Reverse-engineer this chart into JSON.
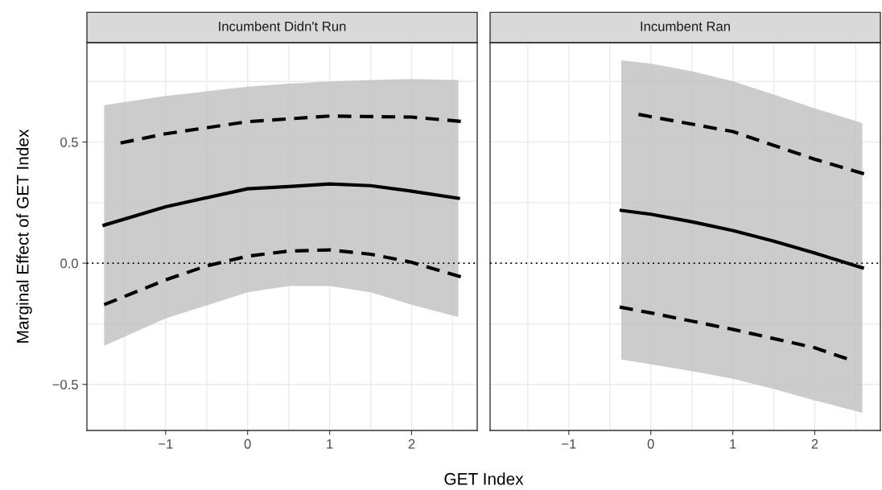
{
  "chart_data": [
    {
      "type": "line",
      "title": "Incumbent Didn't Run",
      "xlabel": "GET Index",
      "ylabel": "Marginal Effect of GET Index",
      "xlim": [
        -1.96,
        2.8
      ],
      "ylim": [
        -0.69,
        0.91
      ],
      "xticks": [
        {
          "value": -1.5,
          "label": null
        },
        {
          "value": -1,
          "label": "−1"
        },
        {
          "value": -0.5,
          "label": null
        },
        0,
        {
          "value": 0.5,
          "label": null
        },
        1,
        {
          "value": 1.5,
          "label": null
        },
        2,
        {
          "value": 2.5,
          "label": null
        }
      ],
      "yticks": [
        {
          "value": -0.5,
          "label": "−0.5"
        },
        {
          "value": -0.25,
          "label": null
        },
        {
          "value": 0,
          "label": "0.0"
        },
        {
          "value": 0.25,
          "label": null
        },
        0.5,
        {
          "value": 0.75,
          "label": null
        }
      ],
      "grid": true,
      "ref_lines": [
        {
          "axis": "y",
          "value": 0,
          "line_style": "dotted",
          "color": "#000000"
        }
      ],
      "series": [
        {
          "color": "#000000",
          "line_style": "solid",
          "x": [
            -1.75,
            -1,
            0,
            0.5,
            1,
            1.5,
            2,
            2.57
          ],
          "values": [
            0.157,
            0.233,
            0.307,
            0.316,
            0.327,
            0.32,
            0.297,
            0.268
          ],
          "lower": [
            -0.341,
            -0.228,
            -0.12,
            -0.094,
            -0.094,
            -0.12,
            -0.171,
            -0.222
          ],
          "upper": [
            0.652,
            0.69,
            0.728,
            0.741,
            0.75,
            0.756,
            0.76,
            0.756
          ]
        },
        {
          "color": "#000000",
          "line_style": "dashed",
          "x": [
            -1.55,
            -1,
            0,
            1,
            2,
            2.6
          ],
          "values": [
            0.496,
            0.534,
            0.584,
            0.607,
            0.603,
            0.585
          ]
        },
        {
          "color": "#000000",
          "line_style": "dashed",
          "x": [
            -1.75,
            -1,
            -0.5,
            0,
            0.5,
            1,
            1.5,
            2,
            2.6
          ],
          "values": [
            -0.171,
            -0.069,
            -0.011,
            0.029,
            0.05,
            0.055,
            0.037,
            0.004,
            -0.056
          ]
        }
      ]
    },
    {
      "type": "line",
      "title": "Incumbent Ran",
      "tick_labels": "x",
      "xlim": [
        -1.96,
        2.8
      ],
      "ylim": [
        -0.69,
        0.91
      ],
      "xticks": [
        {
          "value": -1.5,
          "label": null
        },
        {
          "value": -1,
          "label": "−1"
        },
        {
          "value": -0.5,
          "label": null
        },
        0,
        {
          "value": 0.5,
          "label": null
        },
        1,
        {
          "value": 1.5,
          "label": null
        },
        2,
        {
          "value": 2.5,
          "label": null
        }
      ],
      "yticks": [
        {
          "value": -0.5,
          "label": null
        },
        {
          "value": -0.25,
          "label": null
        },
        {
          "value": 0,
          "label": null
        },
        {
          "value": 0.25,
          "label": null
        },
        {
          "value": 0.5,
          "label": null
        },
        {
          "value": 0.75,
          "label": null
        }
      ],
      "grid": true,
      "ref_lines": [
        {
          "axis": "y",
          "value": 0,
          "line_style": "dotted",
          "color": "#000000"
        }
      ],
      "series": [
        {
          "color": "#000000",
          "line_style": "solid",
          "x": [
            -0.36,
            0,
            0.5,
            1,
            1.5,
            2,
            2.58
          ],
          "values": [
            0.218,
            0.202,
            0.171,
            0.135,
            0.091,
            0.042,
            -0.019
          ],
          "lower": [
            -0.397,
            -0.417,
            -0.445,
            -0.477,
            -0.519,
            -0.566,
            -0.617
          ],
          "upper": [
            0.837,
            0.824,
            0.792,
            0.751,
            0.696,
            0.639,
            0.578
          ]
        },
        {
          "color": "#000000",
          "line_style": "dashed",
          "x": [
            -0.15,
            1,
            2,
            2.6
          ],
          "values": [
            0.614,
            0.543,
            0.429,
            0.369
          ]
        },
        {
          "color": "#000000",
          "line_style": "dashed",
          "x": [
            -0.38,
            0,
            1,
            2,
            2.39
          ],
          "values": [
            -0.181,
            -0.205,
            -0.273,
            -0.349,
            -0.394
          ]
        }
      ]
    }
  ]
}
